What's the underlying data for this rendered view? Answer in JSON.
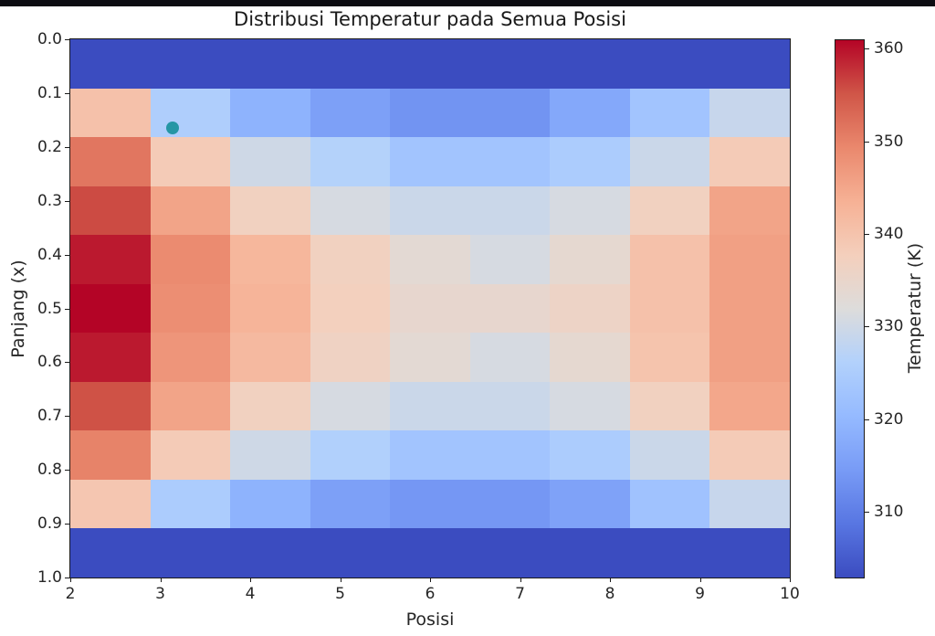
{
  "figure": {
    "background": "#ffffff",
    "top_bar_color": "#0d0d12"
  },
  "chart_data": {
    "type": "heatmap",
    "title": "Distribusi Temperatur pada Semua Posisi",
    "xlabel": "Posisi",
    "ylabel": "Panjang (x)",
    "x_range": [
      2,
      10
    ],
    "y_range": [
      0,
      1
    ],
    "y_axis_inverted": true,
    "x_ticks": [
      2,
      3,
      4,
      5,
      6,
      7,
      8,
      9,
      10
    ],
    "y_ticks": [
      "0.0",
      "0.1",
      "0.2",
      "0.3",
      "0.4",
      "0.5",
      "0.6",
      "0.7",
      "0.8",
      "0.9",
      "1.0"
    ],
    "grid_rows": 11,
    "grid_cols": 9,
    "values": [
      [
        303,
        303,
        303,
        303,
        303,
        303,
        303,
        303,
        303
      ],
      [
        340.5,
        325.5,
        319,
        315.5,
        313.5,
        313.5,
        317,
        323,
        329
      ],
      [
        351.5,
        338.5,
        330,
        326.5,
        323,
        323,
        325,
        329.5,
        338.5
      ],
      [
        356,
        345.5,
        337,
        331,
        329.5,
        329.5,
        331,
        337,
        345.5
      ],
      [
        359.5,
        349,
        342.5,
        337,
        333.5,
        331,
        334,
        340.5,
        346
      ],
      [
        361,
        348.5,
        343,
        337.5,
        334.5,
        334.5,
        336,
        340.5,
        346
      ],
      [
        359.5,
        347.5,
        342,
        336.5,
        333.5,
        331,
        334,
        340,
        346
      ],
      [
        355.5,
        345.5,
        337,
        331,
        329.5,
        329.5,
        331,
        337,
        345
      ],
      [
        350,
        338.5,
        330,
        326,
        323,
        323,
        325,
        329.5,
        338.5
      ],
      [
        339.5,
        325,
        319,
        315.5,
        314,
        314,
        316,
        322.5,
        329
      ],
      [
        303,
        303,
        303,
        303,
        303,
        303,
        303,
        303,
        303
      ]
    ],
    "vmin": 303,
    "vmax": 361,
    "colormap": "coolwarm",
    "colormap_anchors": [
      [
        0.0,
        "#3b4cc0"
      ],
      [
        0.1,
        "#5876e2"
      ],
      [
        0.2,
        "#789bf6"
      ],
      [
        0.3,
        "#95baff"
      ],
      [
        0.4,
        "#b2d1fc"
      ],
      [
        0.5,
        "#dddcdb"
      ],
      [
        0.6,
        "#f4cfbc"
      ],
      [
        0.7,
        "#f6b195"
      ],
      [
        0.8,
        "#ea886d"
      ],
      [
        0.9,
        "#d05648"
      ],
      [
        1.0,
        "#b40426"
      ]
    ],
    "colorbar": {
      "label": "Temperatur (K)",
      "ticks": [
        310,
        320,
        330,
        340,
        350,
        360
      ]
    },
    "marker": {
      "shape": "circle",
      "posisi": 3.14,
      "panjang": 0.165,
      "color": "#2596a5"
    }
  }
}
